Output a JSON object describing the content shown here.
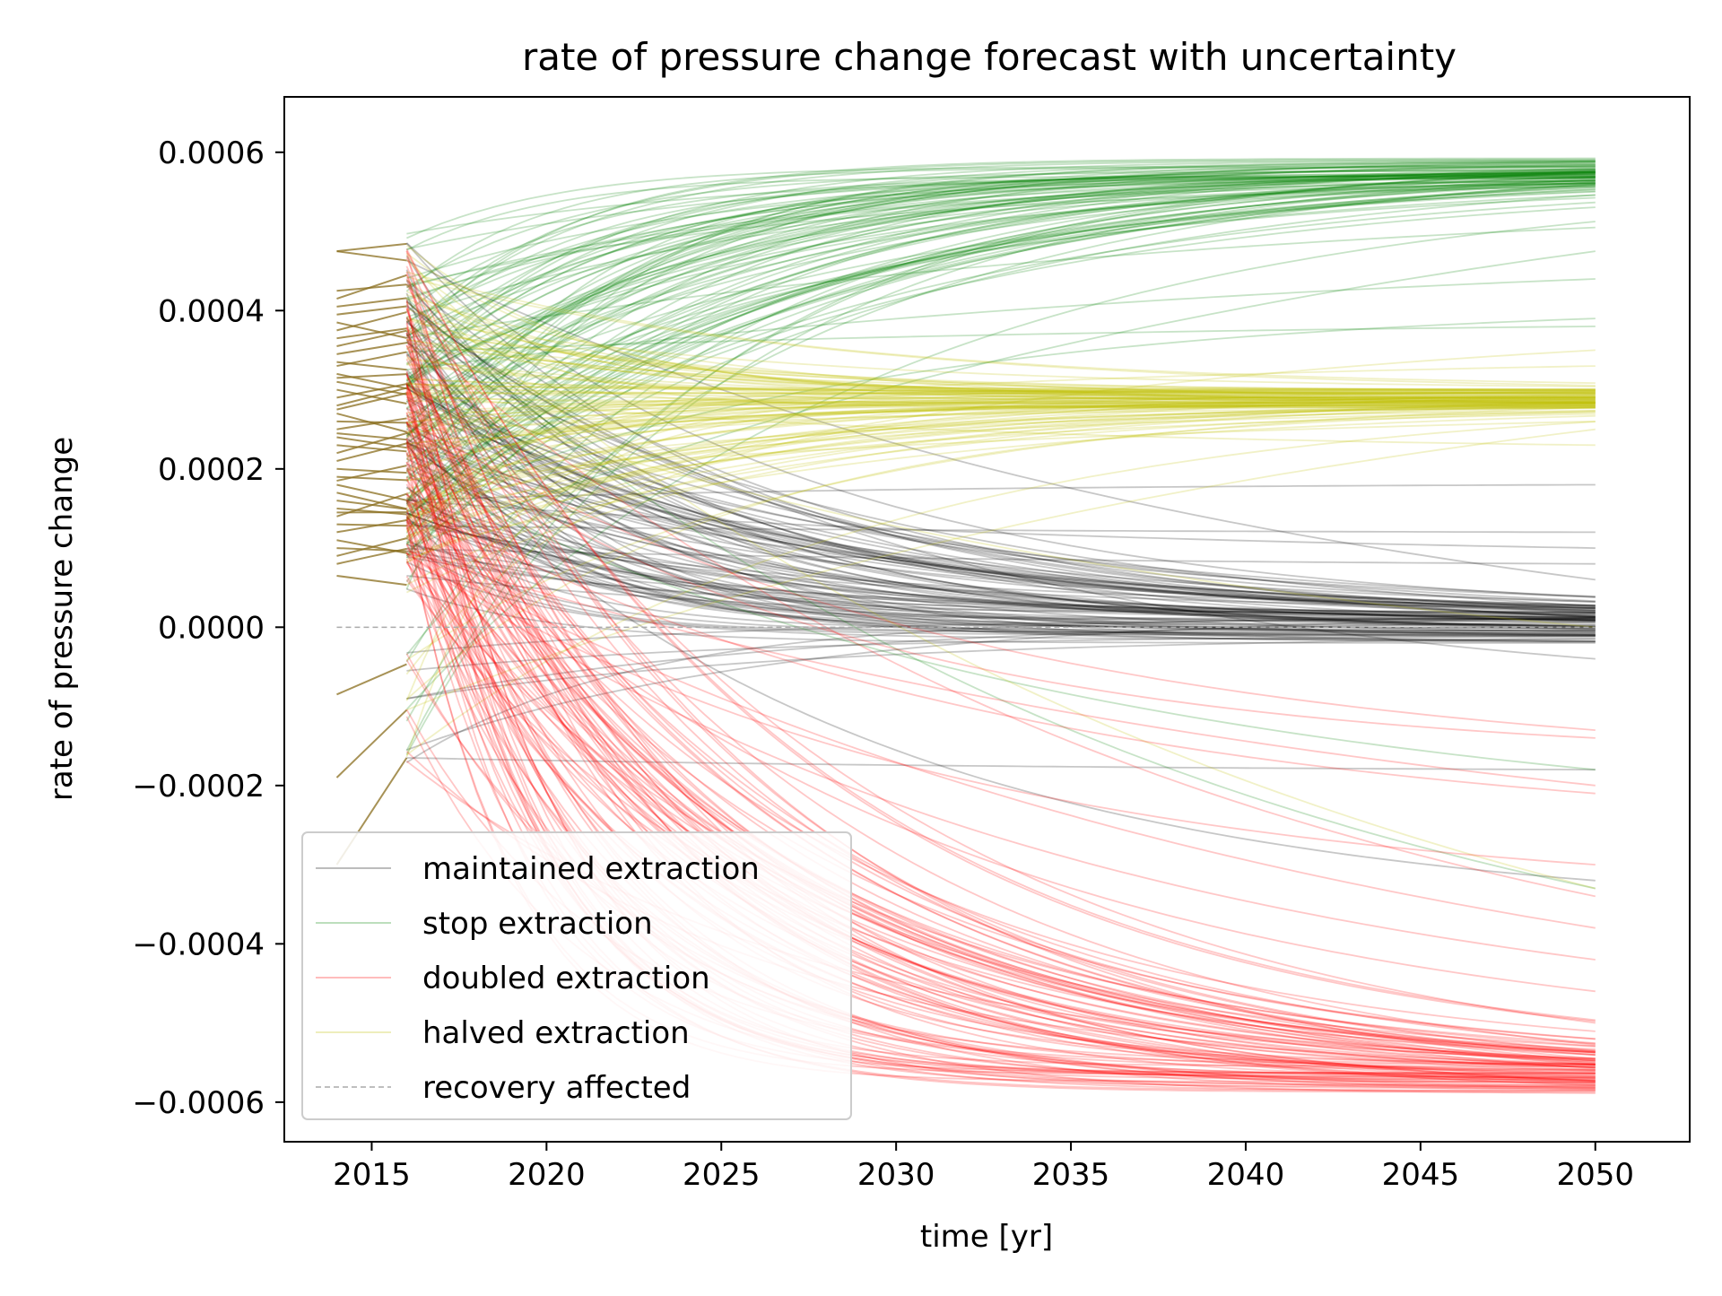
{
  "chart_data": {
    "type": "line",
    "title": "rate of pressure change forecast with uncertainty",
    "xlabel": "time [yr]",
    "ylabel": "rate of pressure change",
    "xlim": [
      2012.5,
      2052.7
    ],
    "ylim": [
      -0.00065,
      0.00067
    ],
    "x_ticks": [
      2015,
      2020,
      2025,
      2030,
      2035,
      2040,
      2045,
      2050
    ],
    "x_tick_labels": [
      "2015",
      "2020",
      "2025",
      "2030",
      "2035",
      "2040",
      "2045",
      "2050"
    ],
    "y_ticks": [
      0.0006,
      0.0004,
      0.0002,
      0.0,
      -0.0002,
      -0.0004,
      -0.0006
    ],
    "y_tick_labels": [
      "0.0006",
      "0.0004",
      "0.0002",
      "0.0000",
      "−0.0002",
      "−0.0004",
      "−0.0006"
    ],
    "grid": false,
    "legend_position": "lower-left",
    "history": {
      "color": "#8a6d1e",
      "x_range": [
        2014,
        2016
      ],
      "initial_values": [
        0.000475,
        0.000475,
        0.000425,
        0.000415,
        0.000405,
        0.000395,
        0.000385,
        0.000375,
        0.000365,
        0.000355,
        0.000345,
        0.000335,
        0.00033,
        0.00032,
        0.000315,
        0.00031,
        0.0003,
        0.00029,
        0.00028,
        0.000275,
        0.00027,
        0.00026,
        0.00025,
        0.000245,
        0.00024,
        0.00023,
        0.00022,
        0.00021,
        0.0002,
        0.00019,
        0.000185,
        0.00018,
        0.00017,
        0.00016,
        0.00015,
        0.000145,
        0.00014,
        0.00013,
        0.00012,
        0.00011,
        0.0001,
        9e-05,
        8e-05,
        6.5e-05,
        -8.5e-05,
        -0.00019,
        -0.0003
      ]
    },
    "series": [
      {
        "name": "maintained extraction",
        "color": "#000000",
        "x_range": [
          2016,
          2050
        ],
        "asymptote": 0.0,
        "asymptote_spread": 4e-05,
        "decay_years_range": [
          3,
          15
        ],
        "slow_lines_end_values": [
          0.00018,
          0.00012,
          0.0001,
          8e-05,
          6e-05,
          -4e-05,
          -0.00018,
          -0.00032
        ]
      },
      {
        "name": "stop extraction",
        "color": "#008000",
        "x_range": [
          2016,
          2050
        ],
        "asymptote": 0.00058,
        "asymptote_spread": 3e-05,
        "decay_years_range": [
          4,
          14
        ],
        "slow_lines_end_values": [
          0.000505,
          0.000475,
          0.00044,
          0.00039,
          0.00038,
          -0.00018,
          -0.00033
        ]
      },
      {
        "name": "doubled extraction",
        "color": "#ff0000",
        "x_range": [
          2016,
          2050
        ],
        "asymptote": -0.00057,
        "asymptote_spread": 4e-05,
        "decay_years_range": [
          3,
          12
        ],
        "slow_lines_end_values": [
          -0.00013,
          -0.00014,
          -0.0002,
          -0.00021,
          -0.0003,
          -0.00034,
          -0.00038,
          -0.00042,
          -0.00046,
          -0.0005
        ]
      },
      {
        "name": "halved extraction",
        "color": "#bfbf00",
        "x_range": [
          2016,
          2050
        ],
        "asymptote": 0.00029,
        "asymptote_spread": 2.5e-05,
        "decay_years_range": [
          3,
          14
        ],
        "slow_lines_end_values": [
          0.00035,
          0.00033,
          0.00026,
          0.00025,
          0.00023,
          0.0,
          -0.00033
        ]
      },
      {
        "name": "recovery affected",
        "color": "#aaaaaa",
        "style": "dashed",
        "x": [
          2014,
          2050
        ],
        "values": [
          0.0,
          0.0
        ]
      }
    ]
  }
}
